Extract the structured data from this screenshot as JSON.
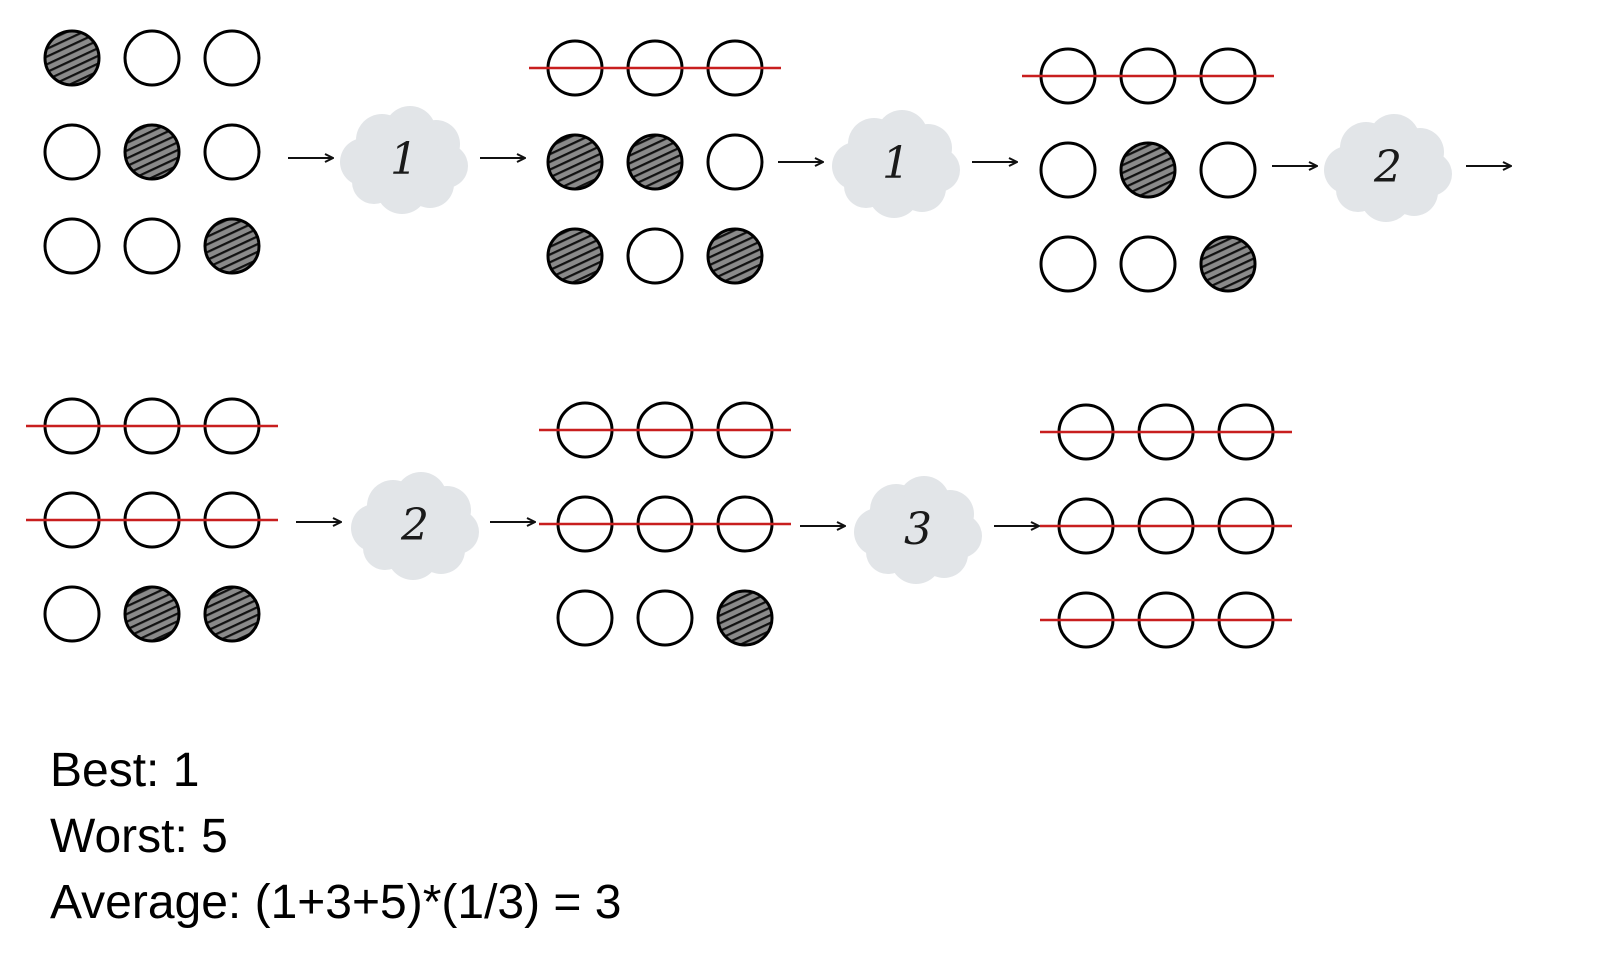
{
  "colors": {
    "circle_stroke": "#000000",
    "circle_fill_empty": "#ffffff",
    "circle_fill_shaded": "#3a3a3a",
    "strike_line": "#c81e1e",
    "cloud": "#e2e5e8"
  },
  "states": [
    {
      "grid": [
        [
          "shaded",
          "empty",
          "empty"
        ],
        [
          "empty",
          "shaded",
          "empty"
        ],
        [
          "empty",
          "empty",
          "shaded"
        ]
      ],
      "struck_rows": [
        false,
        false,
        false
      ]
    },
    {
      "grid": [
        [
          "empty",
          "empty",
          "empty"
        ],
        [
          "shaded",
          "shaded",
          "empty"
        ],
        [
          "shaded",
          "empty",
          "shaded"
        ]
      ],
      "struck_rows": [
        true,
        false,
        false
      ]
    },
    {
      "grid": [
        [
          "empty",
          "empty",
          "empty"
        ],
        [
          "empty",
          "shaded",
          "empty"
        ],
        [
          "empty",
          "empty",
          "shaded"
        ]
      ],
      "struck_rows": [
        true,
        false,
        false
      ]
    },
    {
      "grid": [
        [
          "empty",
          "empty",
          "empty"
        ],
        [
          "empty",
          "empty",
          "empty"
        ],
        [
          "empty",
          "shaded",
          "shaded"
        ]
      ],
      "struck_rows": [
        true,
        true,
        false
      ]
    },
    {
      "grid": [
        [
          "empty",
          "empty",
          "empty"
        ],
        [
          "empty",
          "empty",
          "empty"
        ],
        [
          "empty",
          "empty",
          "shaded"
        ]
      ],
      "struck_rows": [
        true,
        true,
        false
      ]
    },
    {
      "grid": [
        [
          "empty",
          "empty",
          "empty"
        ],
        [
          "empty",
          "empty",
          "empty"
        ],
        [
          "empty",
          "empty",
          "empty"
        ]
      ],
      "struck_rows": [
        true,
        true,
        true
      ]
    }
  ],
  "clouds": [
    "1",
    "1",
    "2",
    "2",
    "3"
  ],
  "summary": {
    "best": "Best: 1",
    "worst": "Worst: 5",
    "average": "Average: (1+3+5)*(1/3) = 3"
  }
}
